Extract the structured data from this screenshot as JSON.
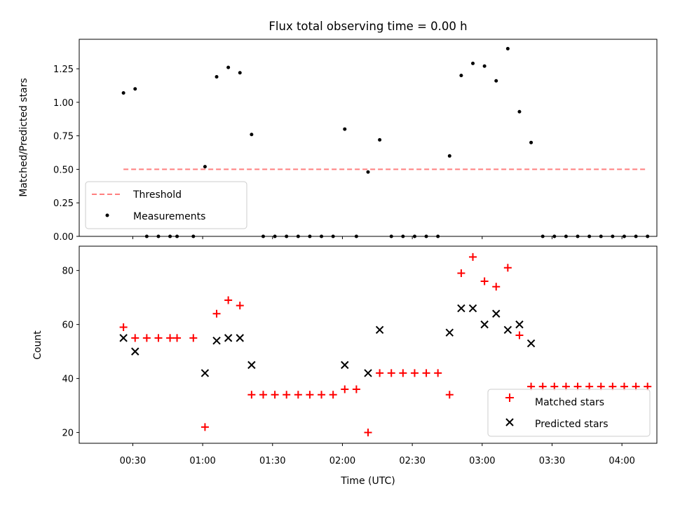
{
  "chart_data": [
    {
      "type": "scatter",
      "title": "Flux total observing time = 0.00 h",
      "xlabel": "",
      "ylabel": "Matched/Predicted stars",
      "ylim": [
        0,
        1.47
      ],
      "xlim": [
        "00:07",
        "04:15"
      ],
      "y_ticks": [
        "0.00",
        "0.25",
        "0.50",
        "0.75",
        "1.00",
        "1.25"
      ],
      "x_ticks": [
        "00:30",
        "01:00",
        "01:30",
        "02:00",
        "02:30",
        "03:00",
        "03:30",
        "04:00"
      ],
      "legend_position": "lower left",
      "series": [
        {
          "name": "Threshold",
          "style": "dashed-line",
          "color": "#ff7f7f",
          "x": [
            "00:26",
            "04:11"
          ],
          "y": [
            0.5,
            0.5
          ]
        },
        {
          "name": "Measurements",
          "style": "dot",
          "color": "#000000",
          "x": [
            "00:26",
            "00:31",
            "00:36",
            "00:41",
            "00:46",
            "00:49",
            "00:56",
            "01:01",
            "01:06",
            "01:11",
            "01:16",
            "01:21",
            "01:26",
            "01:31",
            "01:36",
            "01:41",
            "01:46",
            "01:51",
            "01:56",
            "02:01",
            "02:06",
            "02:11",
            "02:16",
            "02:21",
            "02:26",
            "02:31",
            "02:36",
            "02:41",
            "02:46",
            "02:51",
            "02:56",
            "03:01",
            "03:06",
            "03:11",
            "03:16",
            "03:21",
            "03:26",
            "03:31",
            "03:36",
            "03:41",
            "03:46",
            "03:51",
            "03:56",
            "04:01",
            "04:06",
            "04:11"
          ],
          "y": [
            1.07,
            1.1,
            0,
            0,
            0,
            0,
            0,
            0.52,
            1.19,
            1.26,
            1.22,
            0.76,
            0,
            0,
            0,
            0,
            0,
            0,
            0,
            0.8,
            0,
            0.48,
            0.72,
            0,
            0,
            0,
            0,
            0,
            0.6,
            1.2,
            1.29,
            1.27,
            1.16,
            1.4,
            0.93,
            0.7,
            0,
            0,
            0,
            0,
            0,
            0,
            0,
            0,
            0,
            0
          ]
        }
      ]
    },
    {
      "type": "scatter",
      "title": "",
      "xlabel": "Time (UTC)",
      "ylabel": "Count",
      "ylim": [
        16,
        89
      ],
      "xlim": [
        "00:07",
        "04:15"
      ],
      "y_ticks": [
        "20",
        "40",
        "60",
        "80"
      ],
      "x_ticks": [
        "00:30",
        "01:00",
        "01:30",
        "02:00",
        "02:30",
        "03:00",
        "03:30",
        "04:00"
      ],
      "legend_position": "lower right",
      "series": [
        {
          "name": "Matched stars",
          "marker": "plus",
          "color": "#ff0000",
          "x": [
            "00:26",
            "00:31",
            "00:36",
            "00:41",
            "00:46",
            "00:49",
            "00:56",
            "01:01",
            "01:06",
            "01:11",
            "01:16",
            "01:21",
            "01:26",
            "01:31",
            "01:36",
            "01:41",
            "01:46",
            "01:51",
            "01:56",
            "02:01",
            "02:06",
            "02:11",
            "02:16",
            "02:21",
            "02:26",
            "02:31",
            "02:36",
            "02:41",
            "02:46",
            "02:51",
            "02:56",
            "03:01",
            "03:06",
            "03:11",
            "03:16",
            "03:21",
            "03:26",
            "03:31",
            "03:36",
            "03:41",
            "03:46",
            "03:51",
            "03:56",
            "04:01",
            "04:06",
            "04:11"
          ],
          "y": [
            59,
            55,
            55,
            55,
            55,
            55,
            55,
            22,
            64,
            69,
            67,
            34,
            34,
            34,
            34,
            34,
            34,
            34,
            34,
            36,
            36,
            20,
            42,
            42,
            42,
            42,
            42,
            42,
            34,
            79,
            85,
            76,
            74,
            81,
            56,
            37,
            37,
            37,
            37,
            37,
            37,
            37,
            37,
            37,
            37,
            37
          ]
        },
        {
          "name": "Predicted stars",
          "marker": "x",
          "color": "#000000",
          "x": [
            "00:26",
            "00:31",
            "01:01",
            "01:06",
            "01:11",
            "01:16",
            "01:21",
            "02:01",
            "02:11",
            "02:16",
            "02:46",
            "02:51",
            "02:56",
            "03:01",
            "03:06",
            "03:11",
            "03:16",
            "03:21"
          ],
          "y": [
            55,
            50,
            42,
            54,
            55,
            55,
            45,
            45,
            42,
            58,
            57,
            66,
            66,
            60,
            64,
            58,
            60,
            53
          ]
        }
      ]
    }
  ]
}
